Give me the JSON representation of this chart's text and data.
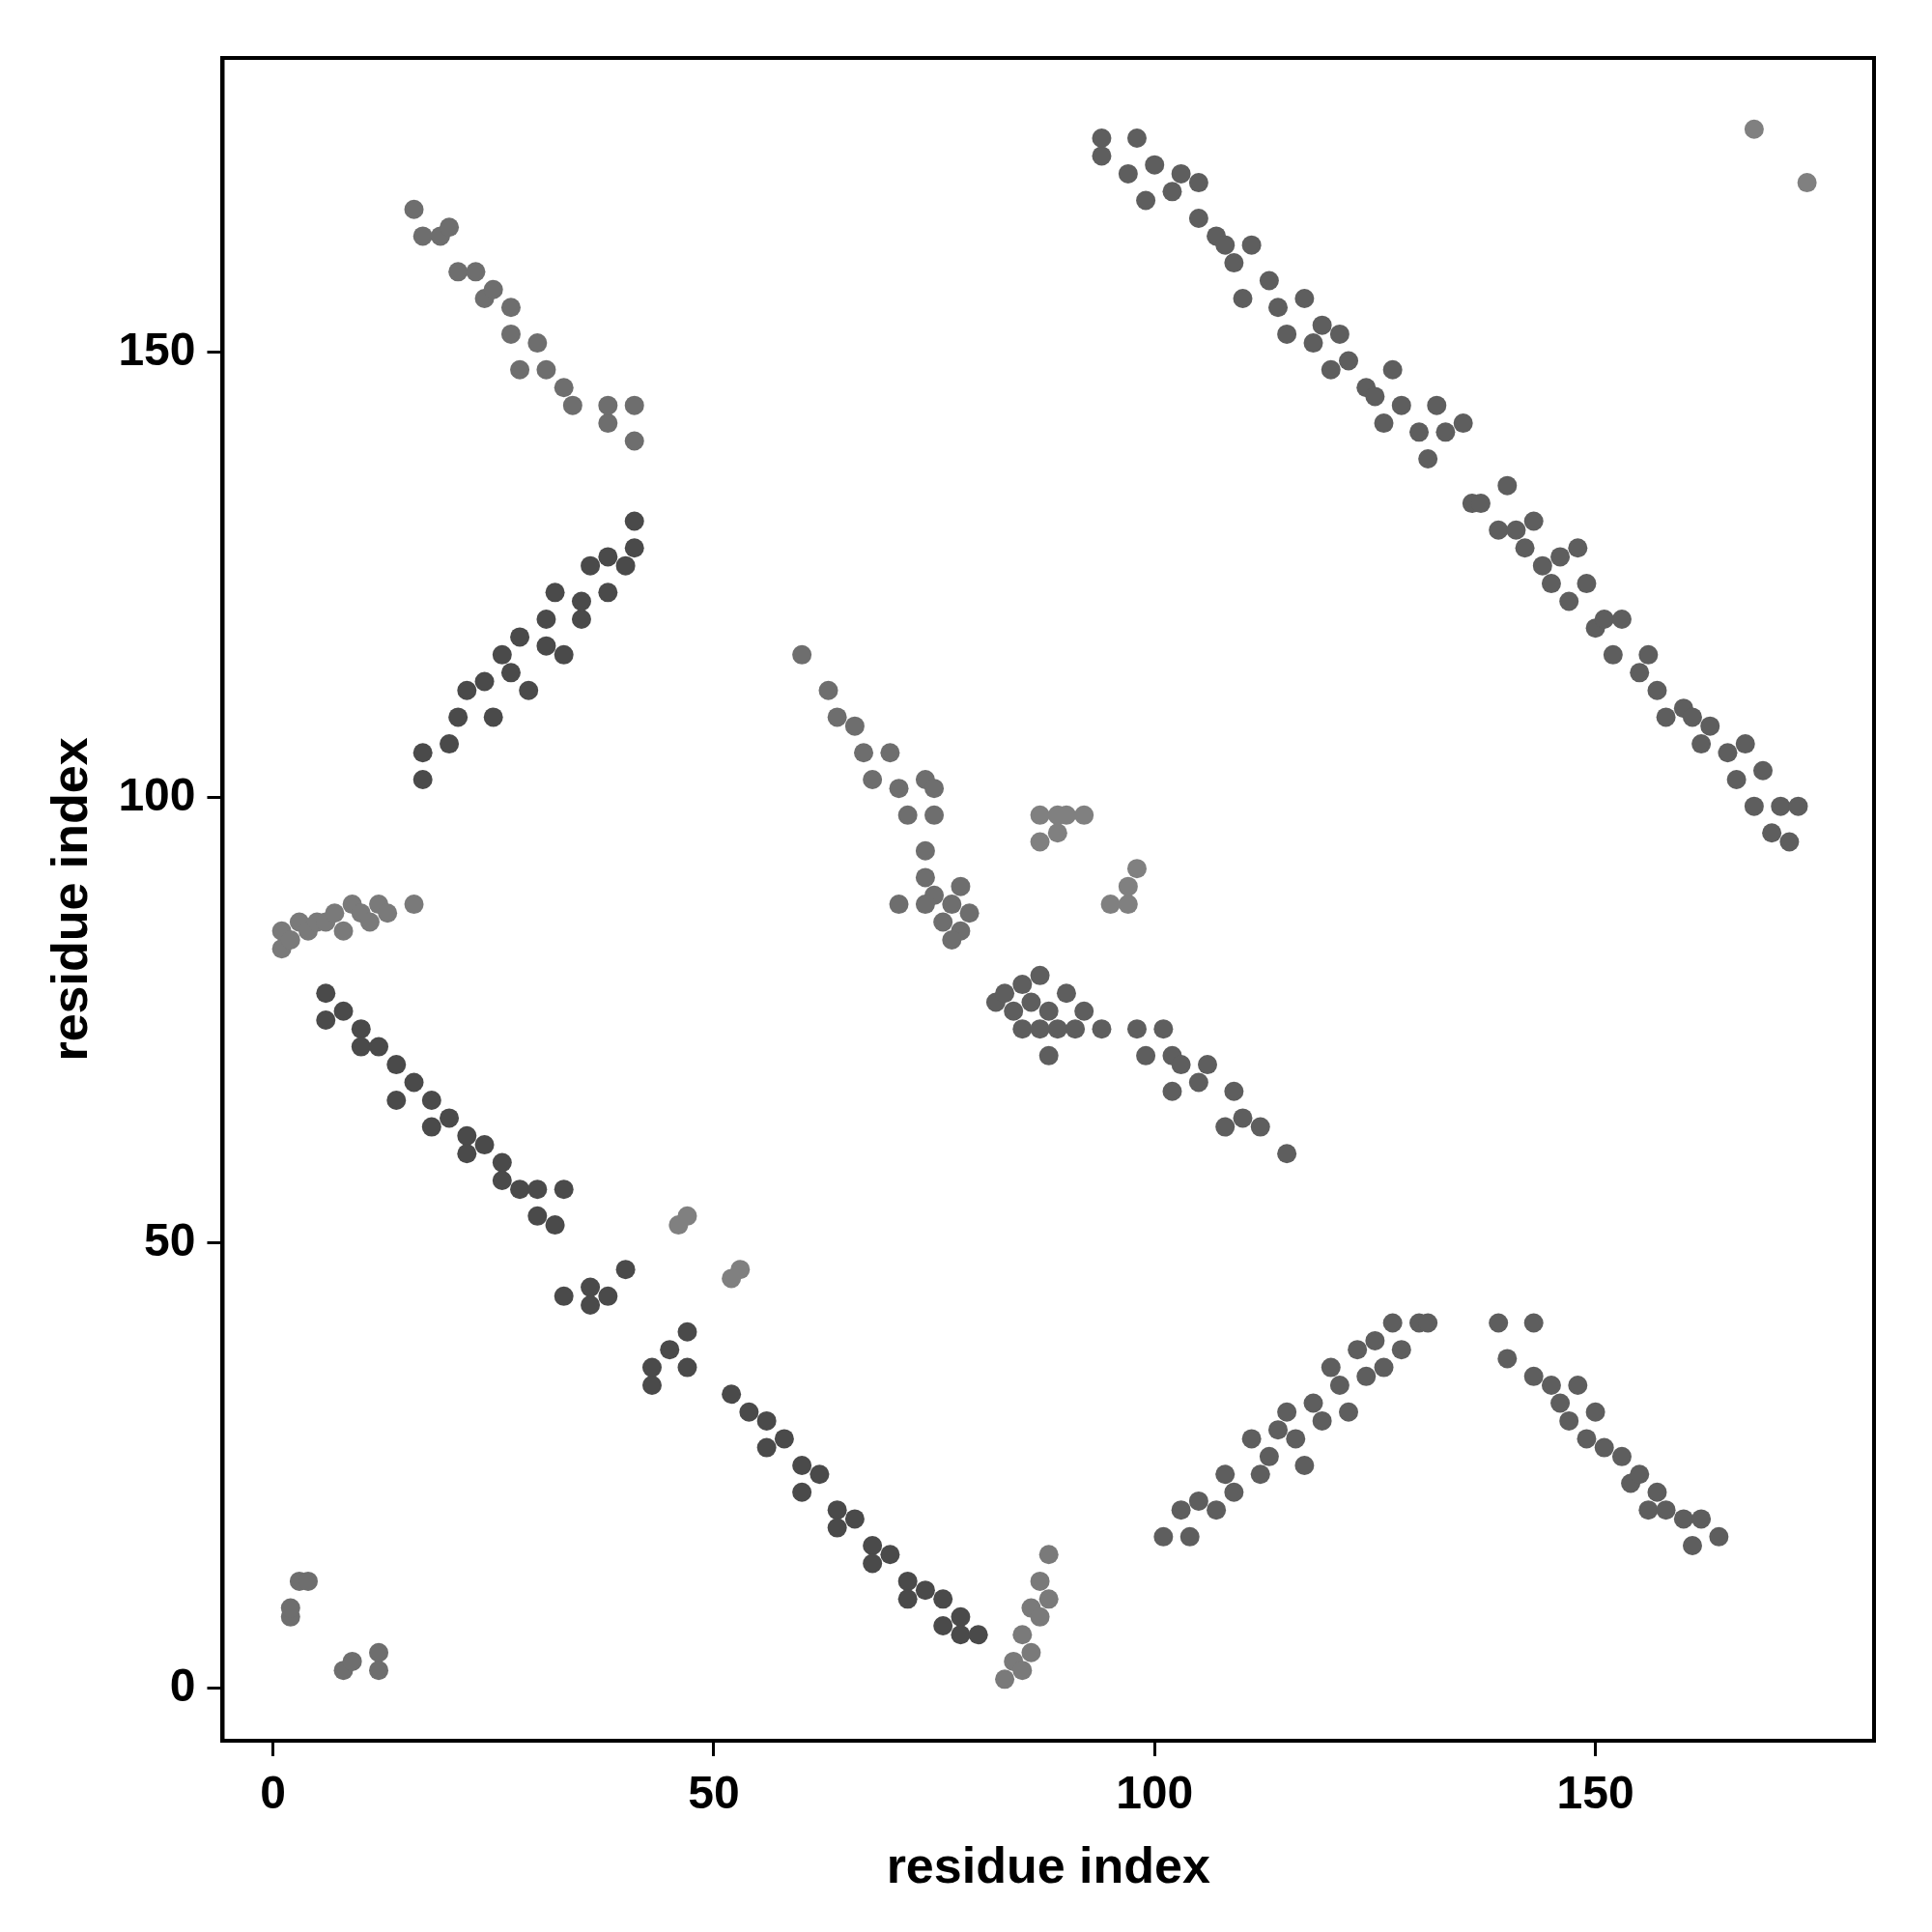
{
  "chart_data": {
    "type": "scatter",
    "xlabel": "residue index",
    "ylabel": "residue index",
    "xlim": [
      -5.7,
      181.6
    ],
    "ylim": [
      -5.9,
      183
    ],
    "xticks": [
      0,
      50,
      100,
      150
    ],
    "yticks": [
      0,
      50,
      100,
      150
    ],
    "grid": false,
    "legend": false,
    "marker": "circle",
    "series": [
      {
        "color": "#6e6e6e",
        "x": [
          2,
          2,
          3,
          4,
          8,
          9,
          12,
          12
        ],
        "values": [
          8,
          9,
          12,
          12,
          2,
          3,
          4,
          2
        ]
      },
      {
        "color": "#7a7a7a",
        "x": [
          1,
          1,
          2,
          3,
          4,
          5,
          6,
          7,
          8,
          9,
          10,
          11,
          12,
          13,
          16
        ],
        "values": [
          83,
          85,
          84,
          86,
          85,
          86,
          86,
          87,
          85,
          88,
          87,
          86,
          88,
          87,
          88
        ]
      },
      {
        "color": "#4a4a4a",
        "x": [
          6,
          6,
          8,
          10,
          10,
          12,
          14,
          14,
          16,
          18,
          18,
          20,
          22,
          22,
          24,
          26,
          26,
          28,
          30,
          30,
          32,
          33,
          33,
          36,
          36,
          38,
          40,
          43,
          43,
          45,
          47,
          47,
          52,
          54,
          56,
          56,
          58,
          60,
          60,
          62,
          64,
          64,
          66,
          68,
          68,
          70,
          72,
          72,
          74,
          76,
          76,
          78,
          78,
          80
        ],
        "values": [
          78,
          75,
          76,
          74,
          72,
          72,
          70,
          66,
          68,
          66,
          63,
          64,
          62,
          60,
          61,
          59,
          57,
          56,
          56,
          53,
          52,
          56,
          44,
          45,
          43,
          44,
          47,
          36,
          34,
          38,
          36,
          40,
          33,
          31,
          30,
          27,
          28,
          25,
          22,
          24,
          20,
          18,
          19,
          16,
          14,
          15,
          12,
          10,
          11,
          7,
          10,
          8,
          6,
          6
        ]
      },
      {
        "color": "#7a7a7a",
        "x": [
          83,
          84,
          85,
          85,
          86,
          86,
          87,
          87,
          88,
          88
        ],
        "values": [
          1,
          3,
          2,
          6,
          4,
          9,
          12,
          8,
          15,
          10
        ]
      },
      {
        "color": "#4a4a4a",
        "x": [
          17,
          17,
          20,
          21,
          22,
          24,
          25,
          26,
          27,
          28,
          29,
          31,
          31,
          32,
          33,
          35,
          35,
          36,
          38,
          38,
          40,
          41,
          41
        ],
        "values": [
          102,
          105,
          106,
          109,
          112,
          113,
          109,
          116,
          114,
          118,
          112,
          120,
          117,
          123,
          116,
          120,
          122,
          126,
          127,
          123,
          126,
          131,
          128
        ]
      },
      {
        "color": "#6e6e6e",
        "x": [
          16,
          17,
          19,
          20,
          21,
          23,
          24,
          25,
          27,
          27,
          28,
          30,
          31,
          33,
          34,
          38,
          38,
          41,
          41
        ],
        "values": [
          166,
          163,
          163,
          164,
          159,
          159,
          156,
          157,
          155,
          152,
          148,
          151,
          148,
          146,
          144,
          142,
          144,
          140,
          144
        ]
      },
      {
        "color": "#6e6e6e",
        "x": [
          60,
          63,
          64,
          66,
          67,
          68,
          70,
          71,
          72,
          74,
          75,
          75,
          74,
          74,
          75,
          76,
          77,
          78,
          78,
          79,
          77,
          71,
          74
        ],
        "values": [
          116,
          112,
          109,
          108,
          105,
          102,
          105,
          101,
          98,
          102,
          98,
          101,
          94,
          91,
          89,
          86,
          88,
          85,
          90,
          87,
          84,
          88,
          88
        ]
      },
      {
        "color": "#808080",
        "x": [
          87,
          87,
          89,
          90,
          92,
          89,
          95,
          97,
          98,
          97
        ],
        "values": [
          98,
          95,
          98,
          98,
          98,
          96,
          88,
          90,
          92,
          88
        ]
      },
      {
        "color": "#5e5e5e",
        "x": [
          82,
          83,
          84,
          85,
          85,
          86,
          87,
          88,
          89,
          90,
          91,
          92,
          94,
          98,
          99,
          101,
          102,
          102,
          103,
          105,
          106,
          108,
          109,
          110,
          112,
          115,
          88,
          87
        ],
        "values": [
          77,
          78,
          76,
          79,
          74,
          77,
          80,
          76,
          74,
          78,
          74,
          76,
          74,
          74,
          71,
          74,
          71,
          67,
          70,
          68,
          70,
          63,
          67,
          64,
          63,
          60,
          71,
          74
        ]
      },
      {
        "color": "#5e5e5e",
        "x": [
          94,
          94,
          97,
          98,
          99,
          100,
          102,
          103,
          105,
          105,
          107,
          108,
          109,
          110,
          111,
          113,
          114,
          115,
          117,
          118,
          119,
          120,
          121,
          122,
          124,
          125,
          126,
          127,
          128,
          130,
          131,
          132,
          133,
          135,
          136,
          137,
          139,
          140,
          141,
          142,
          143,
          144,
          145,
          146,
          147,
          148,
          149,
          150,
          151,
          152,
          153,
          155,
          156,
          157,
          158,
          160,
          161,
          162,
          163,
          165,
          166,
          167,
          168,
          169,
          170,
          171,
          172,
          173
        ],
        "values": [
          172,
          174,
          170,
          174,
          167,
          171,
          168,
          170,
          165,
          169,
          163,
          162,
          160,
          156,
          162,
          158,
          155,
          152,
          156,
          151,
          153,
          148,
          152,
          149,
          146,
          145,
          142,
          148,
          144,
          141,
          138,
          144,
          141,
          142,
          133,
          133,
          130,
          135,
          130,
          128,
          131,
          126,
          124,
          127,
          122,
          128,
          124,
          119,
          120,
          116,
          120,
          114,
          116,
          112,
          109,
          110,
          109,
          106,
          108,
          105,
          102,
          106,
          99,
          103,
          96,
          99,
          95,
          99
        ]
      },
      {
        "color": "#808080",
        "x": [
          168,
          174
        ],
        "values": [
          175,
          169
        ]
      },
      {
        "color": "#5e5e5e",
        "x": [
          101,
          103,
          104,
          105,
          107,
          108,
          109,
          111,
          112,
          113,
          114,
          115,
          116,
          117,
          118,
          119,
          120,
          121,
          122,
          123,
          124,
          125,
          126,
          127,
          128,
          130,
          131,
          139,
          140,
          143,
          143,
          145,
          146,
          147,
          148,
          149,
          150,
          151,
          153,
          154,
          155,
          156,
          157,
          158,
          160,
          161,
          162,
          164
        ],
        "values": [
          17,
          20,
          17,
          21,
          20,
          24,
          22,
          28,
          24,
          26,
          29,
          31,
          28,
          25,
          32,
          30,
          36,
          34,
          31,
          38,
          35,
          39,
          36,
          41,
          38,
          41,
          41,
          41,
          37,
          41,
          35,
          34,
          32,
          30,
          34,
          28,
          31,
          27,
          26,
          23,
          24,
          20,
          22,
          20,
          19,
          16,
          19,
          17
        ]
      },
      {
        "color": "#808080",
        "x": [
          46,
          47,
          52,
          53
        ],
        "values": [
          52,
          53,
          46,
          47
        ]
      }
    ]
  }
}
